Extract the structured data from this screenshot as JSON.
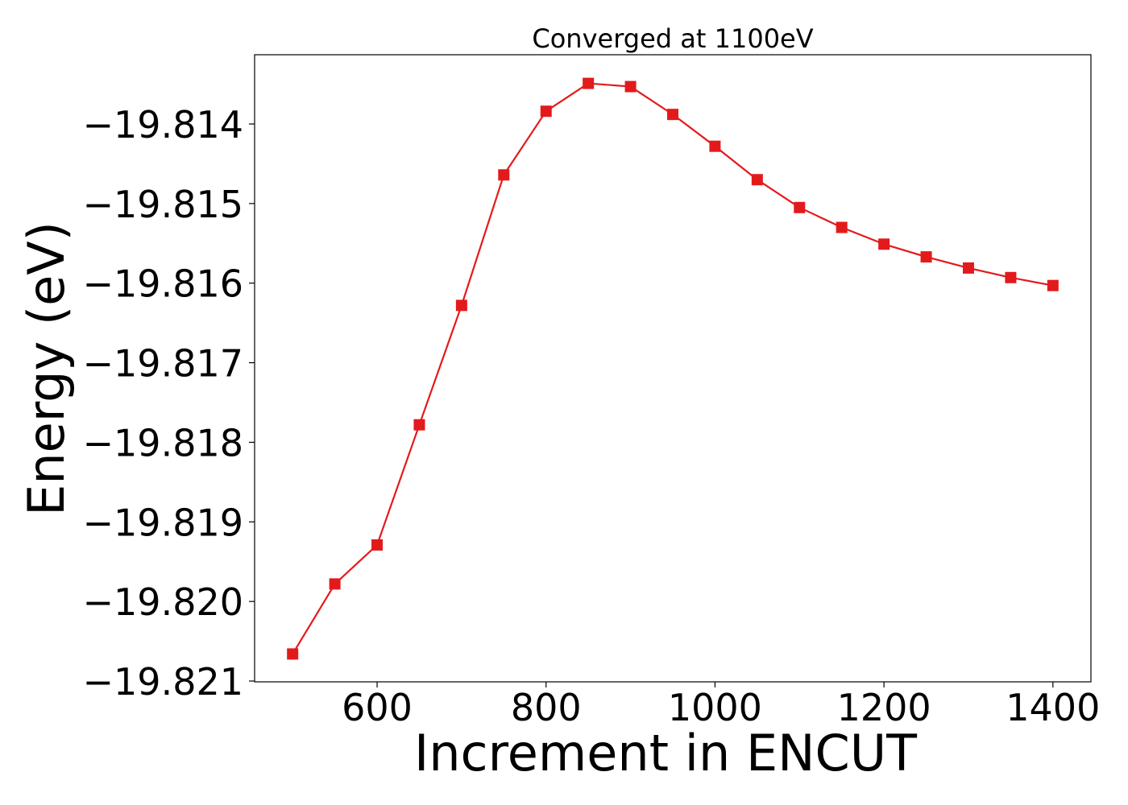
{
  "chart_data": {
    "type": "line",
    "title": "Converged at 1100eV",
    "xlabel": "Increment in ENCUT",
    "ylabel": "Energy (eV)",
    "xlim": [
      455,
      1445
    ],
    "ylim": [
      -19.82101,
      -19.81313
    ],
    "xticks": [
      600,
      800,
      1000,
      1200,
      1400
    ],
    "xtick_labels": [
      "600",
      "800",
      "1000",
      "1200",
      "1400"
    ],
    "yticks": [
      -19.814,
      -19.815,
      -19.816,
      -19.817,
      -19.818,
      -19.819,
      -19.82,
      -19.821
    ],
    "ytick_labels": [
      "−19.814",
      "−19.815",
      "−19.816",
      "−19.817",
      "−19.818",
      "−19.819",
      "−19.820",
      "−19.821"
    ],
    "grid": false,
    "color": "#e31a1c",
    "marker": "square",
    "series": [
      {
        "x": [
          500,
          550,
          600,
          650,
          700,
          750,
          800,
          850,
          900,
          950,
          1000,
          1050,
          1100,
          1150,
          1200,
          1250,
          1300,
          1350,
          1400
        ],
        "values": [
          -19.82066,
          -19.81978,
          -19.81929,
          -19.81778,
          -19.81628,
          -19.81464,
          -19.81384,
          -19.81349,
          -19.81353,
          -19.81388,
          -19.81428,
          -19.8147,
          -19.81505,
          -19.8153,
          -19.81551,
          -19.81567,
          -19.81581,
          -19.81593,
          -19.81603
        ]
      }
    ]
  }
}
